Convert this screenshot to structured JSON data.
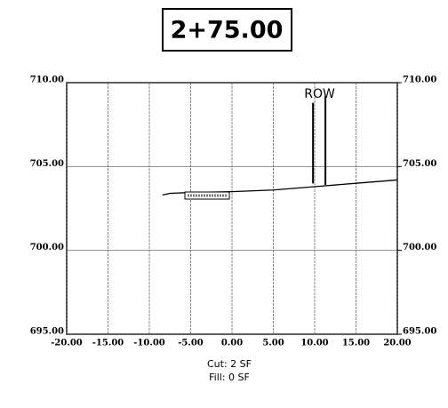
{
  "chart_data": {
    "type": "line",
    "title": "2+75.00",
    "x": [
      -8.4,
      -7.5,
      -5.0,
      0.0,
      5.0,
      10.0,
      15.0,
      20.0
    ],
    "series": [
      {
        "name": null,
        "color": "#000000",
        "values": [
          703.3,
          703.4,
          703.45,
          703.5,
          703.6,
          703.8,
          704.0,
          704.2
        ]
      }
    ],
    "xlim": [
      -20,
      20
    ],
    "ylim": [
      695,
      710
    ],
    "y2lim": [
      695,
      710
    ],
    "xticks": [
      {
        "value": -20,
        "label": "-20.00"
      },
      {
        "value": -15,
        "label": "-15.00"
      },
      {
        "value": -10,
        "label": "-10.00"
      },
      {
        "value": -5,
        "label": "-5.00"
      },
      {
        "value": 0,
        "label": "0.00"
      },
      {
        "value": 5,
        "label": "5.00"
      },
      {
        "value": 10,
        "label": "10.00"
      },
      {
        "value": 15,
        "label": "15.00"
      },
      {
        "value": 20,
        "label": "20.00"
      }
    ],
    "yticks": [
      {
        "value": 695,
        "label": "695.00"
      },
      {
        "value": 700,
        "label": "700.00"
      },
      {
        "value": 705,
        "label": "705.00"
      },
      {
        "value": 710,
        "label": "710.00"
      }
    ],
    "y2ticks": [
      {
        "value": 695,
        "label": "695.00"
      },
      {
        "value": 700,
        "label": "700.00"
      },
      {
        "value": 705,
        "label": "705.00"
      },
      {
        "value": 710,
        "label": "710.00"
      }
    ],
    "grid": true,
    "annotations": [
      {
        "text": "ROW",
        "x": 10.6,
        "y": 709.3
      }
    ],
    "row_lines": [
      {
        "x": 9.8,
        "y": [
          704.0,
          708.8
        ]
      },
      {
        "x": 11.3,
        "y": [
          703.9,
          709.2
        ]
      }
    ],
    "footer": [
      "Cut: 2  SF",
      "Fill: 0  SF"
    ]
  }
}
